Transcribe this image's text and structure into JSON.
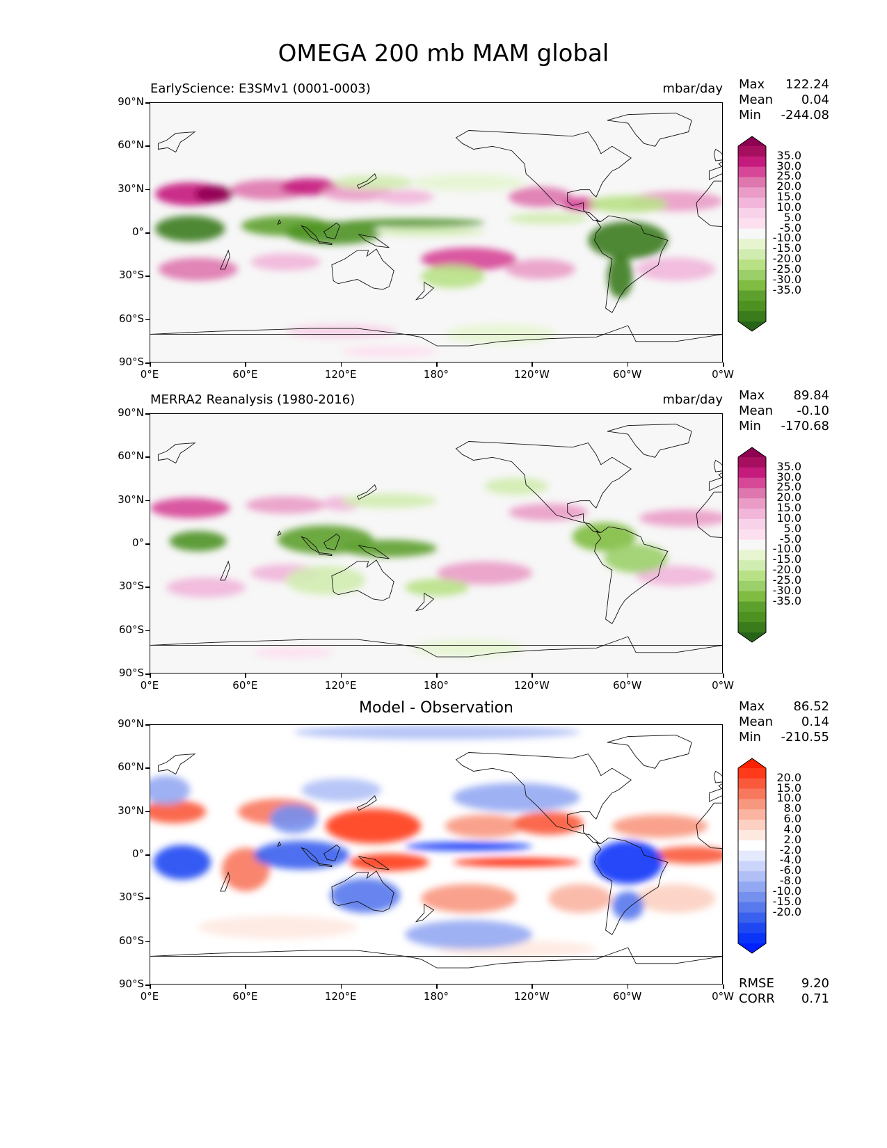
{
  "figure": {
    "title": "OMEGA 200 mb MAM global"
  },
  "axes": {
    "lat_labels": [
      "90°N",
      "60°N",
      "30°N",
      "0°",
      "30°S",
      "60°S",
      "90°S"
    ],
    "lon_labels": [
      "0°E",
      "60°E",
      "120°E",
      "180°",
      "120°W",
      "60°W",
      "0°W"
    ]
  },
  "panels": [
    {
      "left_title": "EarlyScience: E3SMv1 (0001-0003)",
      "right_title": "mbar/day",
      "center_title": "",
      "stats": {
        "max_label": "Max",
        "max": "122.24",
        "mean_label": "Mean",
        "mean": "0.04",
        "min_label": "Min",
        "min": "-244.08"
      },
      "colorbar": {
        "labels": [
          "35.0",
          "30.0",
          "25.0",
          "20.0",
          "15.0",
          "10.0",
          "5.0",
          "-5.0",
          "-10.0",
          "-15.0",
          "-20.0",
          "-25.0",
          "-30.0",
          "-35.0"
        ],
        "colors": [
          "#8e0152",
          "#a50f5e",
          "#c51b7d",
          "#d64797",
          "#de77ae",
          "#ea9cc7",
          "#f1b6da",
          "#f7d2e8",
          "#fde0ef",
          "#f7f7f7",
          "#e6f5d0",
          "#d0ecb0",
          "#b8e186",
          "#9bcf6a",
          "#7fbc41",
          "#5da02e",
          "#4d9221",
          "#3a7b1c",
          "#276419"
        ]
      },
      "scheme": "prgn"
    },
    {
      "left_title": "MERRA2 Reanalysis (1980-2016)",
      "right_title": "mbar/day",
      "center_title": "",
      "stats": {
        "max_label": "Max",
        "max": "89.84",
        "mean_label": "Mean",
        "mean": "-0.10",
        "min_label": "Min",
        "min": "-170.68"
      },
      "colorbar": {
        "labels": [
          "35.0",
          "30.0",
          "25.0",
          "20.0",
          "15.0",
          "10.0",
          "5.0",
          "-5.0",
          "-10.0",
          "-15.0",
          "-20.0",
          "-25.0",
          "-30.0",
          "-35.0"
        ],
        "colors": [
          "#8e0152",
          "#a50f5e",
          "#c51b7d",
          "#d64797",
          "#de77ae",
          "#ea9cc7",
          "#f1b6da",
          "#f7d2e8",
          "#fde0ef",
          "#f7f7f7",
          "#e6f5d0",
          "#d0ecb0",
          "#b8e186",
          "#9bcf6a",
          "#7fbc41",
          "#5da02e",
          "#4d9221",
          "#3a7b1c",
          "#276419"
        ]
      },
      "scheme": "prgn"
    },
    {
      "left_title": "",
      "right_title": "",
      "center_title": "Model - Observation",
      "stats": {
        "max_label": "Max",
        "max": "86.52",
        "mean_label": "Mean",
        "mean": "0.14",
        "min_label": "Min",
        "min": "-210.55"
      },
      "colorbar": {
        "labels": [
          "20.0",
          "15.0",
          "10.0",
          "8.0",
          "6.0",
          "4.0",
          "2.0",
          "-2.0",
          "-4.0",
          "-6.0",
          "-8.0",
          "-10.0",
          "-15.0",
          "-20.0"
        ],
        "colors": [
          "#ff2000",
          "#ff3a1a",
          "#fa5a3c",
          "#f8785e",
          "#f8977f",
          "#fab4a1",
          "#fcd0c2",
          "#fee9e1",
          "#ffffff",
          "#e4e9fc",
          "#cbd5fa",
          "#b0c0f6",
          "#93a8f2",
          "#7690ef",
          "#5878ed",
          "#3a60ee",
          "#1f48f2",
          "#0a34f8",
          "#0020ff"
        ]
      },
      "scheme": "rdbu",
      "metrics": {
        "rmse_label": "RMSE",
        "rmse": "9.20",
        "corr_label": "CORR",
        "corr": "0.71"
      }
    }
  ]
}
